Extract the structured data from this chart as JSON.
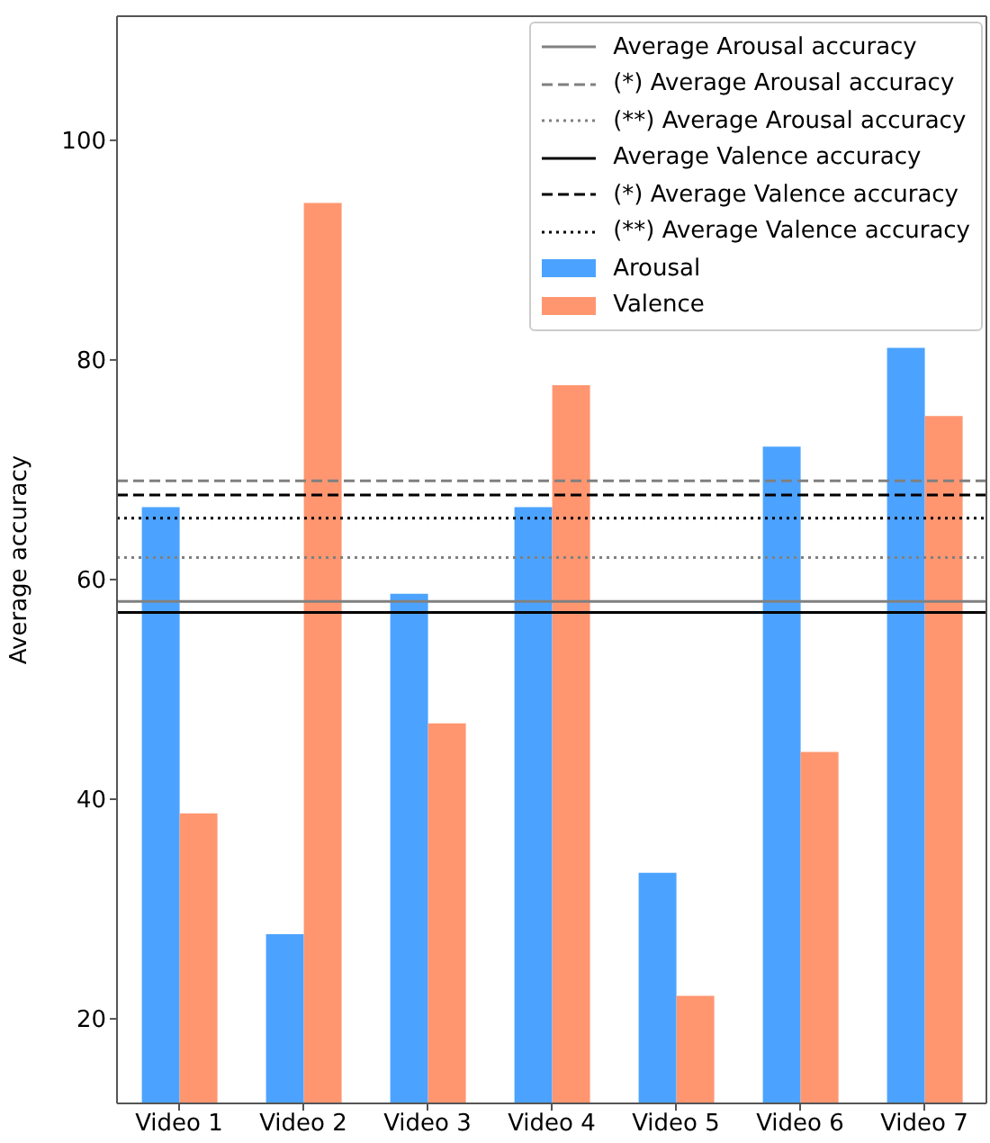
{
  "chart_data": {
    "type": "bar",
    "ylabel": "Average accuracy",
    "categories": [
      "Video 1",
      "Video 2",
      "Video 3",
      "Video 4",
      "Video 5",
      "Video 6",
      "Video 7"
    ],
    "series": [
      {
        "name": "Arousal",
        "color": "#4ca3ff",
        "values": [
          66.6,
          27.7,
          58.7,
          66.6,
          33.3,
          72.1,
          81.1
        ]
      },
      {
        "name": "Valence",
        "color": "#ff9670",
        "values": [
          38.7,
          94.3,
          46.9,
          77.7,
          22.1,
          44.3,
          74.9
        ]
      }
    ],
    "ylim": [
      12.3,
      111.3
    ],
    "yticks": [
      20,
      40,
      60,
      80,
      100
    ],
    "grid": false,
    "legend": "top right",
    "ref_lines": [
      {
        "axis": "y",
        "value": 58.0,
        "label": "Average Arousal accuracy",
        "color": "#808080",
        "line_style": "solid"
      },
      {
        "axis": "y",
        "value": 69.0,
        "label": "(*) Average Arousal accuracy",
        "color": "#808080",
        "line_style": "dashed"
      },
      {
        "axis": "y",
        "value": 62.0,
        "label": "(**) Average Arousal accuracy",
        "color": "#808080",
        "line_style": "dotted"
      },
      {
        "axis": "y",
        "value": 57.0,
        "label": "Average Valence accuracy",
        "color": "#000000",
        "line_style": "solid"
      },
      {
        "axis": "y",
        "value": 67.7,
        "label": "(*) Average Valence accuracy",
        "color": "#000000",
        "line_style": "dashed"
      },
      {
        "axis": "y",
        "value": 65.6,
        "label": "(**) Average Valence accuracy",
        "color": "#000000",
        "line_style": "dotted"
      }
    ]
  }
}
